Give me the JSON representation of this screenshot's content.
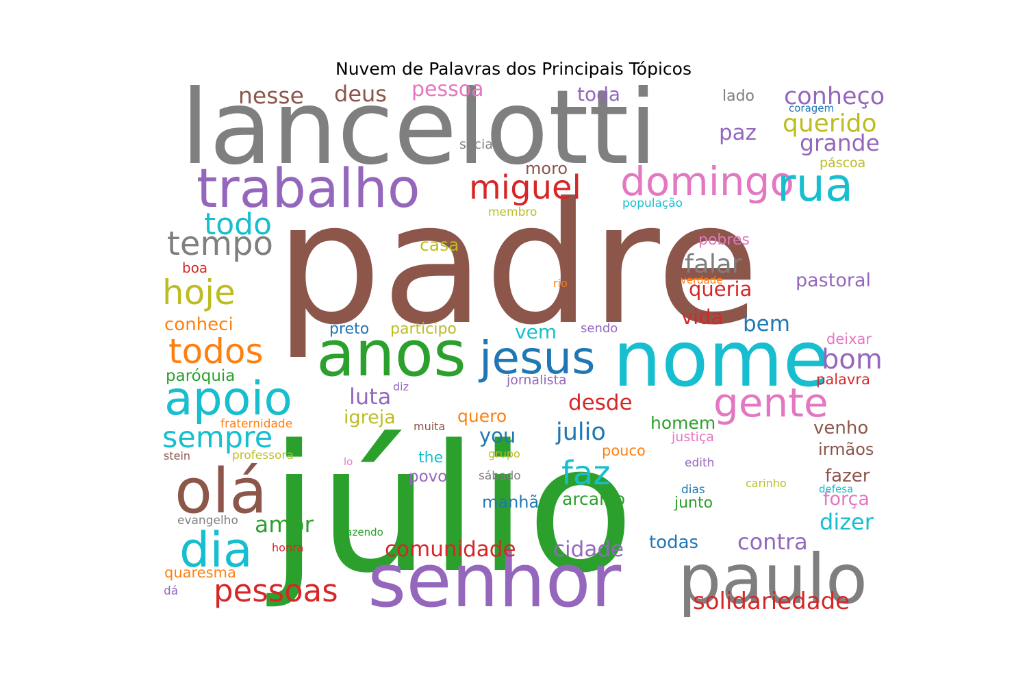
{
  "chart_data": {
    "type": "wordcloud",
    "title": "Nuvem de Palavras dos Principais Tópicos",
    "colors": {
      "blue": "#1f77b4",
      "orange": "#ff7f0e",
      "green": "#2ca02c",
      "red": "#d62728",
      "purple": "#9467bd",
      "brown": "#8c564b",
      "pink": "#e377c2",
      "gray": "#7f7f7f",
      "olive": "#bcbd22",
      "cyan": "#17becf"
    },
    "words": [
      {
        "text": "padre",
        "color": "brown"
      },
      {
        "text": "júlio",
        "color": "green"
      },
      {
        "text": "lancelotti",
        "color": "gray"
      },
      {
        "text": "nome",
        "color": "cyan"
      },
      {
        "text": "senhor",
        "color": "purple"
      },
      {
        "text": "paulo",
        "color": "gray"
      },
      {
        "text": "anos",
        "color": "green"
      },
      {
        "text": "trabalho",
        "color": "purple"
      },
      {
        "text": "jesus",
        "color": "blue"
      },
      {
        "text": "olá",
        "color": "brown"
      },
      {
        "text": "apoio",
        "color": "cyan"
      },
      {
        "text": "dia",
        "color": "cyan"
      },
      {
        "text": "domingo",
        "color": "pink"
      },
      {
        "text": "rua",
        "color": "cyan"
      },
      {
        "text": "gente",
        "color": "pink"
      },
      {
        "text": "miguel",
        "color": "red"
      },
      {
        "text": "tempo",
        "color": "gray"
      },
      {
        "text": "todos",
        "color": "orange"
      },
      {
        "text": "pessoas",
        "color": "red"
      },
      {
        "text": "hoje",
        "color": "olive"
      },
      {
        "text": "sempre",
        "color": "cyan"
      },
      {
        "text": "todo",
        "color": "cyan"
      },
      {
        "text": "faz",
        "color": "cyan"
      },
      {
        "text": "bom",
        "color": "purple"
      },
      {
        "text": "conheço",
        "color": "purple"
      },
      {
        "text": "querido",
        "color": "olive"
      },
      {
        "text": "solidariedade",
        "color": "red"
      },
      {
        "text": "grande",
        "color": "purple"
      },
      {
        "text": "julio",
        "color": "blue"
      },
      {
        "text": "comunidade",
        "color": "red"
      },
      {
        "text": "nesse",
        "color": "brown"
      },
      {
        "text": "deus",
        "color": "brown"
      },
      {
        "text": "falar",
        "color": "gray"
      },
      {
        "text": "paz",
        "color": "purple"
      },
      {
        "text": "amor",
        "color": "green"
      },
      {
        "text": "cidade",
        "color": "purple"
      },
      {
        "text": "contra",
        "color": "purple"
      },
      {
        "text": "dizer",
        "color": "cyan"
      },
      {
        "text": "bem",
        "color": "blue"
      },
      {
        "text": "pessoa",
        "color": "pink"
      },
      {
        "text": "luta",
        "color": "purple"
      },
      {
        "text": "vida",
        "color": "red"
      },
      {
        "text": "queria",
        "color": "red"
      },
      {
        "text": "desde",
        "color": "red"
      },
      {
        "text": "toda",
        "color": "purple"
      },
      {
        "text": "pastoral",
        "color": "purple"
      },
      {
        "text": "igreja",
        "color": "olive"
      },
      {
        "text": "you",
        "color": "blue"
      },
      {
        "text": "homem",
        "color": "green"
      },
      {
        "text": "vem",
        "color": "cyan"
      },
      {
        "text": "conheci",
        "color": "orange"
      },
      {
        "text": "quero",
        "color": "orange"
      },
      {
        "text": "venho",
        "color": "brown"
      },
      {
        "text": "fazer",
        "color": "brown"
      },
      {
        "text": "força",
        "color": "pink"
      },
      {
        "text": "todas",
        "color": "blue"
      },
      {
        "text": "irmãos",
        "color": "brown"
      },
      {
        "text": "casa",
        "color": "olive"
      },
      {
        "text": "arcanjo",
        "color": "green"
      },
      {
        "text": "manhã",
        "color": "blue"
      },
      {
        "text": "moro",
        "color": "brown"
      },
      {
        "text": "paróquia",
        "color": "green"
      },
      {
        "text": "preto",
        "color": "blue"
      },
      {
        "text": "participo",
        "color": "olive"
      },
      {
        "text": "pobres",
        "color": "pink"
      },
      {
        "text": "junto",
        "color": "green"
      },
      {
        "text": "povo",
        "color": "purple"
      },
      {
        "text": "deixar",
        "color": "pink"
      },
      {
        "text": "palavra",
        "color": "red"
      },
      {
        "text": "the",
        "color": "cyan"
      },
      {
        "text": "pouco",
        "color": "orange"
      },
      {
        "text": "quaresma",
        "color": "orange"
      },
      {
        "text": "lado",
        "color": "gray"
      },
      {
        "text": "social",
        "color": "gray"
      },
      {
        "text": "páscoa",
        "color": "olive"
      },
      {
        "text": "boa",
        "color": "red"
      },
      {
        "text": "jornalista",
        "color": "purple"
      },
      {
        "text": "justiça",
        "color": "pink"
      },
      {
        "text": "população",
        "color": "cyan"
      },
      {
        "text": "membro",
        "color": "olive"
      },
      {
        "text": "fraternidade",
        "color": "orange"
      },
      {
        "text": "professora",
        "color": "olive"
      },
      {
        "text": "sendo",
        "color": "purple"
      },
      {
        "text": "evangelho",
        "color": "gray"
      },
      {
        "text": "sábado",
        "color": "gray"
      },
      {
        "text": "grupo",
        "color": "olive"
      },
      {
        "text": "muita",
        "color": "brown"
      },
      {
        "text": "edith",
        "color": "purple"
      },
      {
        "text": "carinho",
        "color": "olive"
      },
      {
        "text": "fazendo",
        "color": "green"
      },
      {
        "text": "honra",
        "color": "red"
      },
      {
        "text": "dias",
        "color": "blue"
      },
      {
        "text": "defesa",
        "color": "cyan"
      },
      {
        "text": "verdade",
        "color": "orange"
      },
      {
        "text": "coragem",
        "color": "blue"
      },
      {
        "text": "rio",
        "color": "orange"
      },
      {
        "text": "stein",
        "color": "brown"
      },
      {
        "text": "diz",
        "color": "purple"
      },
      {
        "text": "lo",
        "color": "pink"
      },
      {
        "text": "dá",
        "color": "purple"
      }
    ]
  }
}
